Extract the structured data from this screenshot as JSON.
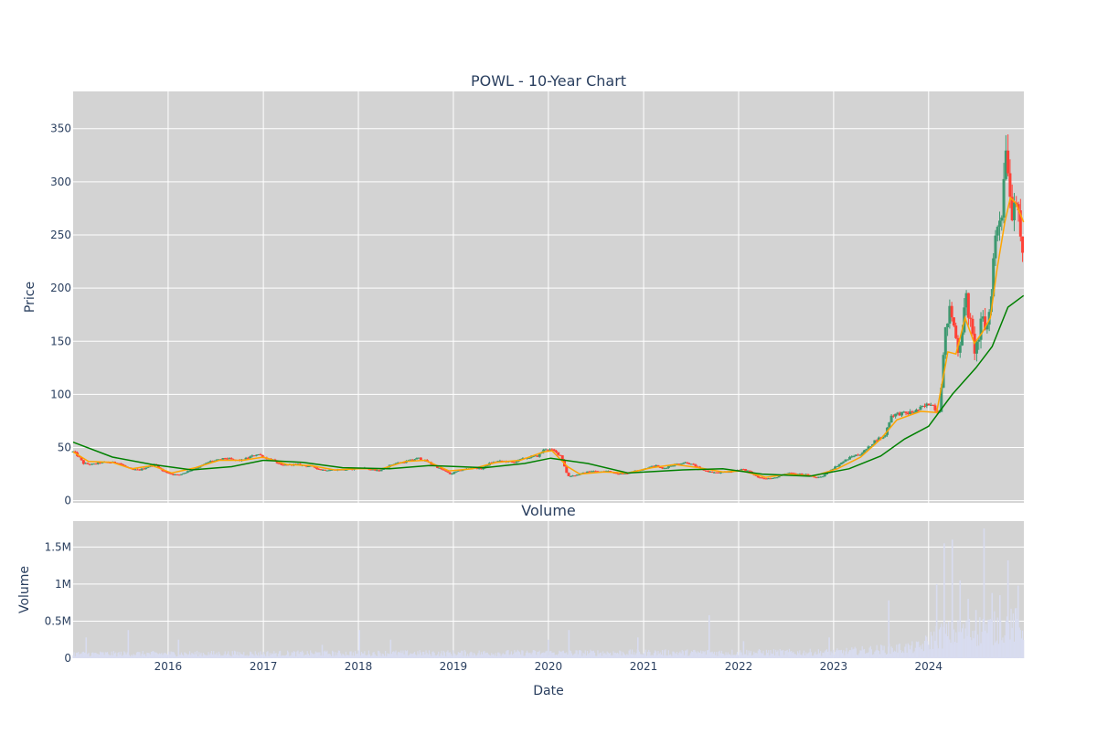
{
  "chart_data": [
    {
      "type": "candlestick",
      "title": "POWL - 10-Year Chart",
      "xlabel": "",
      "ylabel": "Price",
      "xlim": [
        "2015-01-01",
        "2025-01-01"
      ],
      "ylim": [
        -2,
        385
      ],
      "yticks": [
        0,
        50,
        100,
        150,
        200,
        250,
        300,
        350
      ],
      "grid": true,
      "candle_colors": {
        "up": "#3d9970",
        "down": "#ff4136"
      },
      "price_path": [
        [
          "2015-01-01",
          46
        ],
        [
          "2015-01-20",
          42
        ],
        [
          "2015-02-10",
          35
        ],
        [
          "2015-03-15",
          34
        ],
        [
          "2015-04-20",
          36
        ],
        [
          "2015-05-20",
          36
        ],
        [
          "2015-06-20",
          36
        ],
        [
          "2015-07-20",
          32
        ],
        [
          "2015-08-15",
          29
        ],
        [
          "2015-09-15",
          29
        ],
        [
          "2015-10-15",
          32
        ],
        [
          "2015-11-15",
          34
        ],
        [
          "2015-12-10",
          28
        ],
        [
          "2016-01-15",
          25
        ],
        [
          "2016-02-10",
          24
        ],
        [
          "2016-03-10",
          27
        ],
        [
          "2016-04-10",
          30
        ],
        [
          "2016-05-10",
          33
        ],
        [
          "2016-06-10",
          37
        ],
        [
          "2016-07-10",
          38
        ],
        [
          "2016-08-10",
          40
        ],
        [
          "2016-09-10",
          38
        ],
        [
          "2016-10-10",
          38
        ],
        [
          "2016-11-10",
          41
        ],
        [
          "2016-12-10",
          44
        ],
        [
          "2017-01-10",
          40
        ],
        [
          "2017-02-10",
          38
        ],
        [
          "2017-03-10",
          33
        ],
        [
          "2017-04-10",
          34
        ],
        [
          "2017-05-10",
          34
        ],
        [
          "2017-06-10",
          33
        ],
        [
          "2017-07-10",
          32
        ],
        [
          "2017-08-10",
          29
        ],
        [
          "2017-09-10",
          29
        ],
        [
          "2017-10-10",
          29
        ],
        [
          "2017-11-10",
          29
        ],
        [
          "2017-12-20",
          30
        ],
        [
          "2018-01-20",
          31
        ],
        [
          "2018-02-20",
          29
        ],
        [
          "2018-03-20",
          28
        ],
        [
          "2018-04-20",
          32
        ],
        [
          "2018-05-20",
          35
        ],
        [
          "2018-06-20",
          36
        ],
        [
          "2018-07-20",
          38
        ],
        [
          "2018-08-20",
          40
        ],
        [
          "2018-09-20",
          37
        ],
        [
          "2018-10-20",
          33
        ],
        [
          "2018-11-20",
          29
        ],
        [
          "2018-12-20",
          25
        ],
        [
          "2019-01-20",
          28
        ],
        [
          "2019-02-20",
          30
        ],
        [
          "2019-03-20",
          31
        ],
        [
          "2019-04-20",
          30
        ],
        [
          "2019-05-20",
          35
        ],
        [
          "2019-06-20",
          37
        ],
        [
          "2019-07-20",
          37
        ],
        [
          "2019-08-20",
          36
        ],
        [
          "2019-09-20",
          39
        ],
        [
          "2019-10-20",
          41
        ],
        [
          "2019-11-20",
          42
        ],
        [
          "2019-12-20",
          49
        ],
        [
          "2020-01-20",
          47
        ],
        [
          "2020-02-20",
          42
        ],
        [
          "2020-03-15",
          23
        ],
        [
          "2020-04-15",
          24
        ],
        [
          "2020-05-15",
          26
        ],
        [
          "2020-06-15",
          28
        ],
        [
          "2020-07-15",
          27
        ],
        [
          "2020-08-15",
          28
        ],
        [
          "2020-09-15",
          26
        ],
        [
          "2020-10-15",
          25
        ],
        [
          "2020-11-15",
          27
        ],
        [
          "2020-12-15",
          29
        ],
        [
          "2021-01-15",
          31
        ],
        [
          "2021-02-15",
          33
        ],
        [
          "2021-03-15",
          30
        ],
        [
          "2021-04-15",
          33
        ],
        [
          "2021-05-15",
          35
        ],
        [
          "2021-06-15",
          36
        ],
        [
          "2021-07-15",
          33
        ],
        [
          "2021-08-15",
          29
        ],
        [
          "2021-09-15",
          27
        ],
        [
          "2021-10-15",
          26
        ],
        [
          "2021-11-15",
          27
        ],
        [
          "2021-12-15",
          28
        ],
        [
          "2022-01-15",
          30
        ],
        [
          "2022-02-15",
          27
        ],
        [
          "2022-03-15",
          22
        ],
        [
          "2022-04-15",
          21
        ],
        [
          "2022-05-15",
          21
        ],
        [
          "2022-06-15",
          24
        ],
        [
          "2022-07-15",
          26
        ],
        [
          "2022-08-15",
          25
        ],
        [
          "2022-09-15",
          25
        ],
        [
          "2022-10-15",
          22
        ],
        [
          "2022-11-15",
          22
        ],
        [
          "2022-12-15",
          28
        ],
        [
          "2023-01-15",
          33
        ],
        [
          "2023-02-15",
          38
        ],
        [
          "2023-03-15",
          42
        ],
        [
          "2023-04-15",
          44
        ],
        [
          "2023-05-15",
          50
        ],
        [
          "2023-06-15",
          58
        ],
        [
          "2023-07-15",
          60
        ],
        [
          "2023-08-10",
          80
        ],
        [
          "2023-09-10",
          82
        ],
        [
          "2023-10-10",
          82
        ],
        [
          "2023-11-10",
          84
        ],
        [
          "2023-12-10",
          88
        ],
        [
          "2024-01-10",
          92
        ],
        [
          "2024-02-10",
          82
        ],
        [
          "2024-02-25",
          130
        ],
        [
          "2024-03-10",
          168
        ],
        [
          "2024-03-25",
          180
        ],
        [
          "2024-04-10",
          160
        ],
        [
          "2024-04-25",
          140
        ],
        [
          "2024-05-10",
          165
        ],
        [
          "2024-05-25",
          190
        ],
        [
          "2024-06-10",
          165
        ],
        [
          "2024-06-25",
          142
        ],
        [
          "2024-07-10",
          150
        ],
        [
          "2024-07-25",
          172
        ],
        [
          "2024-08-10",
          160
        ],
        [
          "2024-08-25",
          185
        ],
        [
          "2024-09-10",
          240
        ],
        [
          "2024-09-25",
          265
        ],
        [
          "2024-10-10",
          275
        ],
        [
          "2024-10-25",
          345
        ],
        [
          "2024-11-05",
          300
        ],
        [
          "2024-11-15",
          270
        ],
        [
          "2024-11-25",
          290
        ],
        [
          "2024-12-05",
          280
        ],
        [
          "2024-12-15",
          250
        ],
        [
          "2024-12-31",
          228
        ]
      ],
      "series": [
        {
          "type": "line",
          "color": "#ffa500",
          "points": [
            [
              "2015-01-01",
              46
            ],
            [
              "2015-03-01",
              37
            ],
            [
              "2015-06-01",
              36
            ],
            [
              "2015-08-15",
              30
            ],
            [
              "2015-11-01",
              33
            ],
            [
              "2016-01-15",
              26
            ],
            [
              "2016-04-15",
              31
            ],
            [
              "2016-07-15",
              38
            ],
            [
              "2016-10-15",
              38
            ],
            [
              "2017-01-01",
              41
            ],
            [
              "2017-04-01",
              34
            ],
            [
              "2017-07-01",
              33
            ],
            [
              "2017-10-01",
              29
            ],
            [
              "2018-01-01",
              30
            ],
            [
              "2018-04-01",
              30
            ],
            [
              "2018-07-01",
              37
            ],
            [
              "2018-09-15",
              38
            ],
            [
              "2018-12-15",
              28
            ],
            [
              "2019-03-15",
              30
            ],
            [
              "2019-06-15",
              36
            ],
            [
              "2019-09-15",
              38
            ],
            [
              "2019-12-15",
              46
            ],
            [
              "2020-01-15",
              47
            ],
            [
              "2020-03-15",
              32
            ],
            [
              "2020-05-01",
              25
            ],
            [
              "2020-08-01",
              27
            ],
            [
              "2020-11-01",
              26
            ],
            [
              "2021-02-01",
              31
            ],
            [
              "2021-05-01",
              34
            ],
            [
              "2021-08-01",
              31
            ],
            [
              "2021-11-01",
              27
            ],
            [
              "2022-01-15",
              28
            ],
            [
              "2022-04-15",
              22
            ],
            [
              "2022-07-15",
              25
            ],
            [
              "2022-10-15",
              23
            ],
            [
              "2023-01-15",
              30
            ],
            [
              "2023-04-15",
              41
            ],
            [
              "2023-07-01",
              58
            ],
            [
              "2023-09-01",
              76
            ],
            [
              "2023-12-01",
              84
            ],
            [
              "2024-02-01",
              83
            ],
            [
              "2024-03-15",
              140
            ],
            [
              "2024-04-15",
              138
            ],
            [
              "2024-05-20",
              172
            ],
            [
              "2024-06-25",
              148
            ],
            [
              "2024-07-25",
              158
            ],
            [
              "2024-08-25",
              172
            ],
            [
              "2024-09-20",
              218
            ],
            [
              "2024-10-20",
              262
            ],
            [
              "2024-11-10",
              285
            ],
            [
              "2024-12-01",
              280
            ],
            [
              "2024-12-31",
              262
            ]
          ]
        },
        {
          "type": "line",
          "color": "#008000",
          "points": [
            [
              "2015-01-01",
              55
            ],
            [
              "2015-06-01",
              41
            ],
            [
              "2015-11-01",
              34
            ],
            [
              "2016-04-01",
              29
            ],
            [
              "2016-09-01",
              32
            ],
            [
              "2017-01-01",
              38
            ],
            [
              "2017-06-01",
              36
            ],
            [
              "2017-11-01",
              31
            ],
            [
              "2018-05-01",
              30
            ],
            [
              "2018-10-01",
              33
            ],
            [
              "2019-05-01",
              31
            ],
            [
              "2019-10-01",
              35
            ],
            [
              "2020-01-10",
              40
            ],
            [
              "2020-06-01",
              35
            ],
            [
              "2020-11-01",
              26
            ],
            [
              "2021-06-01",
              29
            ],
            [
              "2021-11-01",
              30
            ],
            [
              "2022-04-01",
              25
            ],
            [
              "2022-10-01",
              23
            ],
            [
              "2023-03-01",
              30
            ],
            [
              "2023-07-01",
              42
            ],
            [
              "2023-10-01",
              58
            ],
            [
              "2024-01-01",
              70
            ],
            [
              "2024-04-01",
              100
            ],
            [
              "2024-07-01",
              125
            ],
            [
              "2024-09-01",
              145
            ],
            [
              "2024-11-01",
              182
            ],
            [
              "2024-12-31",
              193
            ]
          ]
        }
      ]
    },
    {
      "type": "bar",
      "title": "Volume",
      "xlabel": "Date",
      "ylabel": "Volume",
      "xlim": [
        "2015-01-01",
        "2025-01-01"
      ],
      "ylim": [
        0,
        1850000
      ],
      "yticks": [
        0,
        500000,
        1000000,
        1500000
      ],
      "ytick_labels": [
        "0",
        "0.5M",
        "1M",
        "1.5M"
      ],
      "xticks": [
        "2016",
        "2017",
        "2018",
        "2019",
        "2020",
        "2021",
        "2022",
        "2023",
        "2024"
      ],
      "bar_color": "#d8dcf0",
      "baseline_volume": [
        [
          "2015-01-01",
          60000
        ],
        [
          "2023-01-01",
          80000
        ],
        [
          "2023-12-01",
          150000
        ],
        [
          "2024-02-01",
          300000
        ],
        [
          "2024-12-31",
          450000
        ]
      ],
      "volume_spikes": [
        [
          "2015-02-20",
          280000
        ],
        [
          "2015-08-01",
          380000
        ],
        [
          "2016-02-10",
          250000
        ],
        [
          "2017-08-15",
          180000
        ],
        [
          "2018-01-05",
          380000
        ],
        [
          "2018-05-05",
          250000
        ],
        [
          "2020-01-01",
          250000
        ],
        [
          "2020-03-20",
          380000
        ],
        [
          "2020-12-10",
          280000
        ],
        [
          "2021-09-10",
          580000
        ],
        [
          "2022-01-20",
          230000
        ],
        [
          "2022-12-15",
          280000
        ],
        [
          "2023-08-01",
          780000
        ],
        [
          "2024-02-01",
          1000000
        ],
        [
          "2024-03-01",
          1550000
        ],
        [
          "2024-04-01",
          1600000
        ],
        [
          "2024-05-01",
          1050000
        ],
        [
          "2024-06-01",
          800000
        ],
        [
          "2024-07-01",
          650000
        ],
        [
          "2024-08-01",
          1750000
        ],
        [
          "2024-09-01",
          880000
        ],
        [
          "2024-10-01",
          850000
        ],
        [
          "2024-11-01",
          1320000
        ],
        [
          "2024-12-10",
          980000
        ]
      ]
    }
  ]
}
